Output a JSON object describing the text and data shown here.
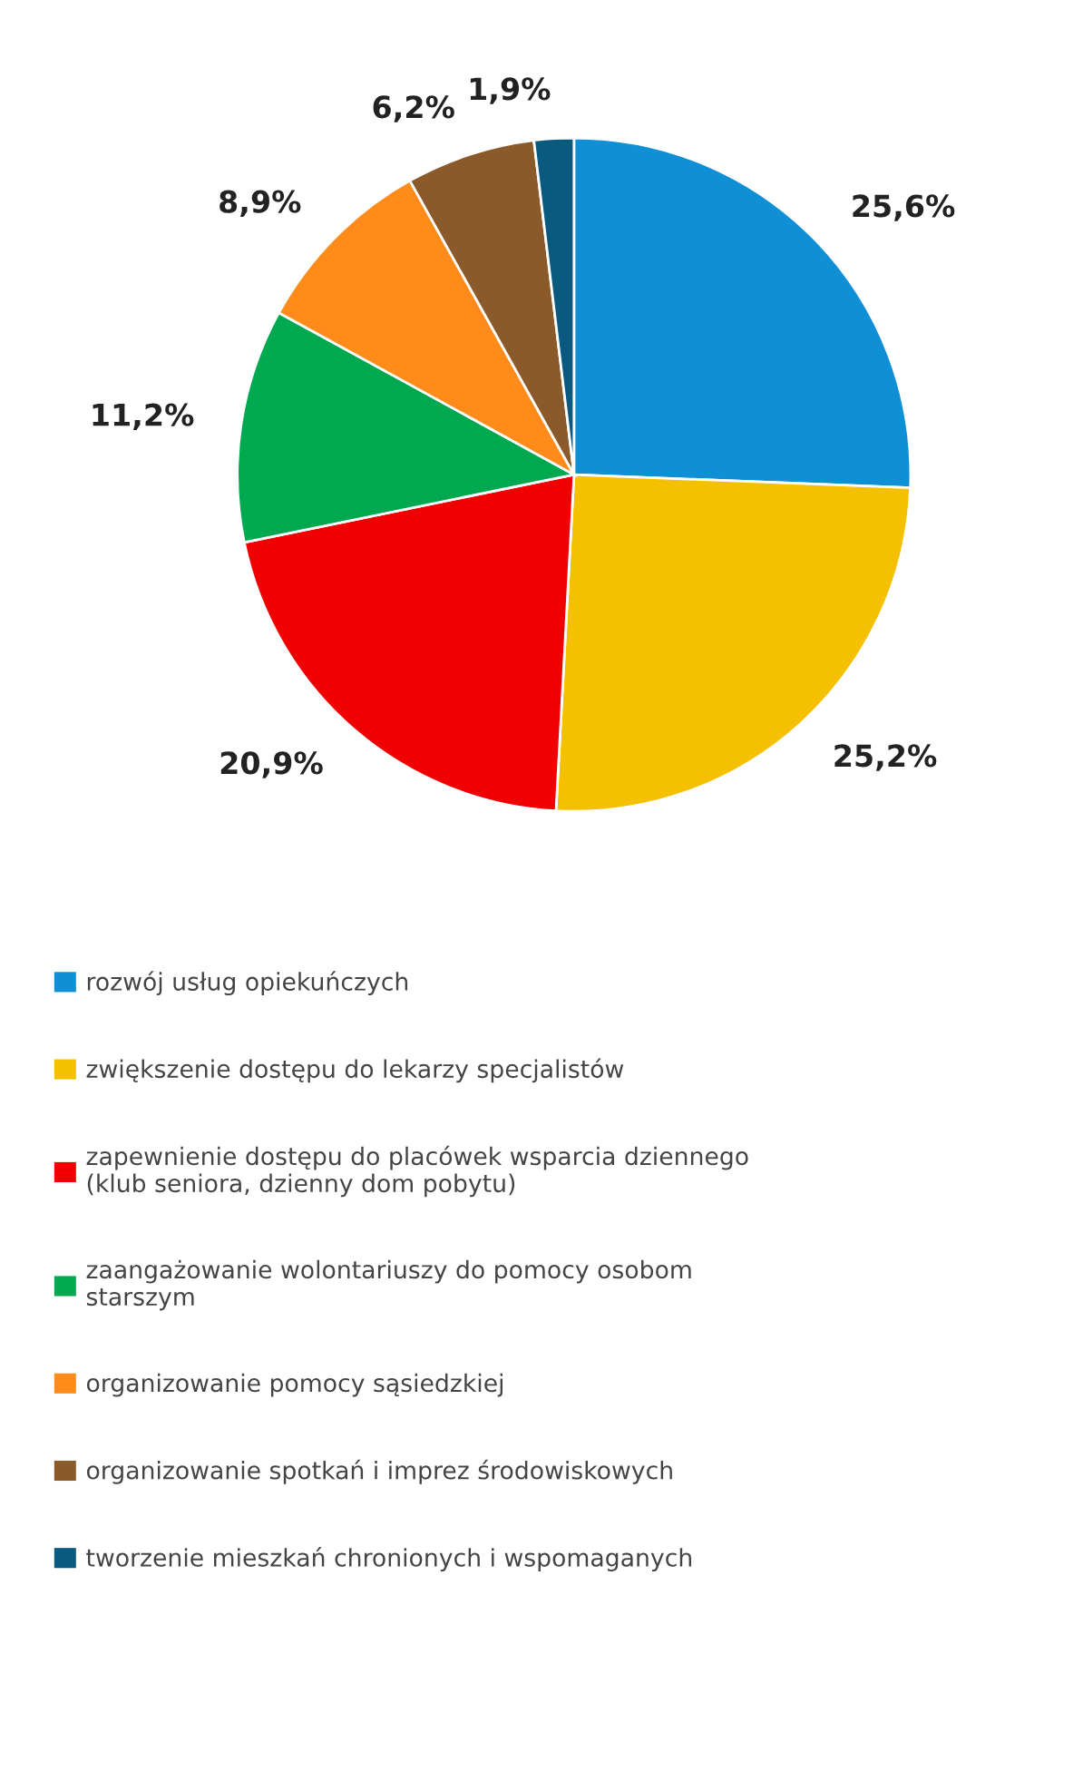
{
  "chart_data": {
    "type": "pie",
    "categories": [
      "rozwój usług opiekuńczych",
      "zwiększenie dostępu do lekarzy specjalistów",
      "zapewnienie dostępu do placówek wsparcia dziennego (klub seniora, dzienny dom pobytu)",
      "zaangażowanie wolontariuszy do pomocy osobom starszym",
      "organizowanie pomocy sąsiedzkiej",
      "organizowanie spotkań i imprez środowiskowych",
      "tworzenie mieszkań chronionych i wspomaganych"
    ],
    "values": [
      25.6,
      25.2,
      20.9,
      11.2,
      8.9,
      6.2,
      1.9
    ],
    "value_labels": [
      "25,6%",
      "25,2%",
      "20,9%",
      "11,2%",
      "8,9%",
      "6,2%",
      "1,9%"
    ],
    "colors": [
      "#0f8fd6",
      "#f5c000",
      "#f00000",
      "#00a84f",
      "#ff8c1a",
      "#8a5a2b",
      "#0a5a80"
    ],
    "legend": "bottom"
  }
}
